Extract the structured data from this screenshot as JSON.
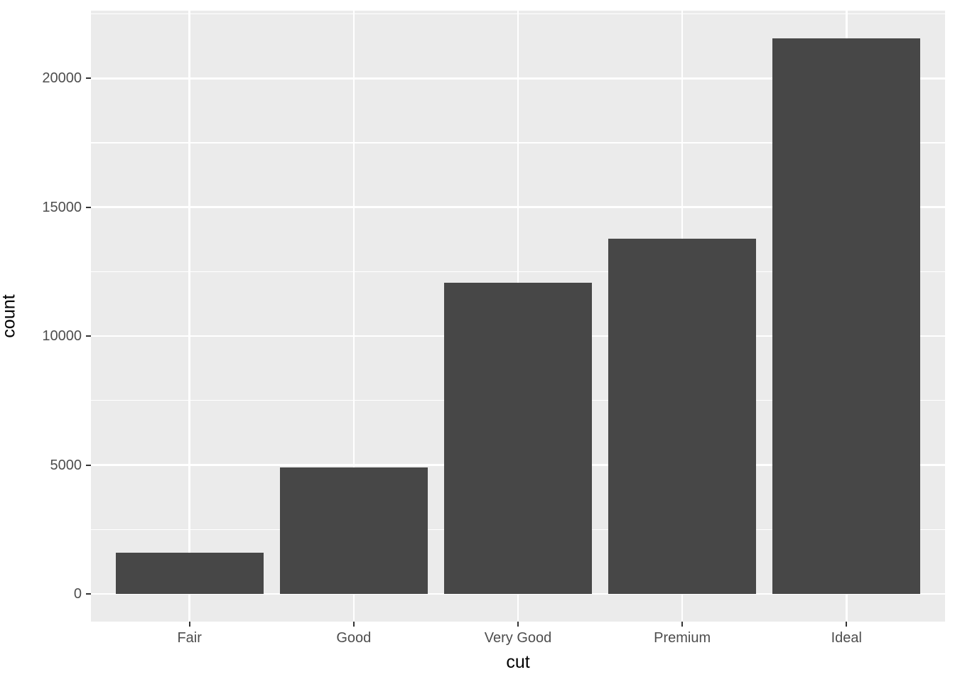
{
  "chart_data": {
    "type": "bar",
    "title": "",
    "xlabel": "cut",
    "ylabel": "count",
    "categories": [
      "Fair",
      "Good",
      "Very Good",
      "Premium",
      "Ideal"
    ],
    "values": [
      1610,
      4906,
      12082,
      13791,
      21551
    ],
    "y_ticks": [
      0,
      5000,
      10000,
      15000,
      20000
    ],
    "y_tick_labels": [
      "0",
      "5000",
      "10000",
      "15000",
      "20000"
    ],
    "y_minor_ticks": [
      2500,
      7500,
      12500,
      17500,
      22500
    ],
    "ylim": [
      0,
      21551
    ],
    "y_expansion_mult": 0.05,
    "x_expansion_add": 0.6,
    "bar_rel_width": 0.9,
    "grid": "major+minor horizontal white, major vertical white at categories",
    "legend_position": "none",
    "style": "ggplot2 theme_grey"
  },
  "colors": {
    "bar_fill": "#474747",
    "panel_background": "#EBEBEB",
    "gridline": "#FFFFFF",
    "tick_mark": "#333333",
    "axis_text": "#4D4D4D",
    "axis_title": "#000000",
    "page_background": "#FFFFFF"
  }
}
